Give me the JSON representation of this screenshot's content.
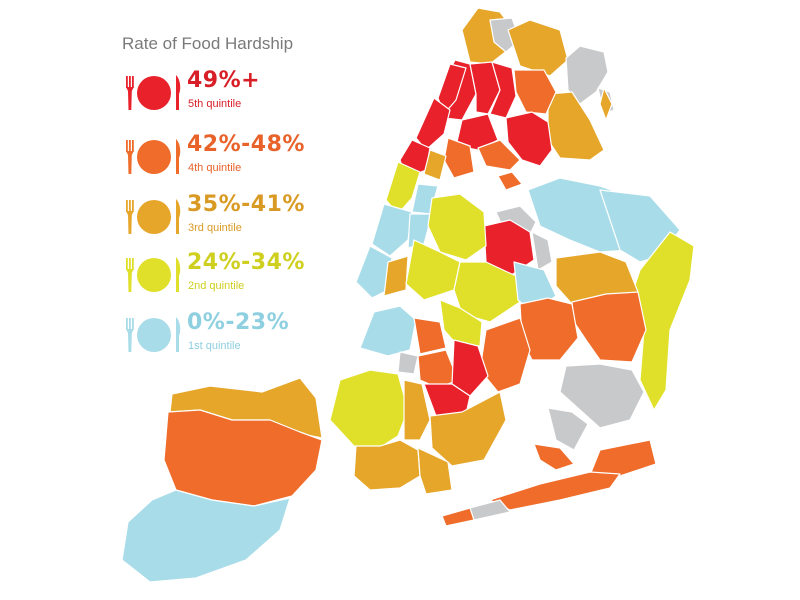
{
  "legend": {
    "title": "Rate of Food Hardship",
    "items": [
      {
        "range": "49%+",
        "quintile": "5th quintile",
        "color": "#e8212b",
        "text_color": "#d81f27"
      },
      {
        "range": "42%-48%",
        "quintile": "4th quintile",
        "color": "#ef6c2a",
        "text_color": "#e8622a"
      },
      {
        "range": "35%-41%",
        "quintile": "3rd quintile",
        "color": "#e6a62a",
        "text_color": "#d99a24"
      },
      {
        "range": "24%-34%",
        "quintile": "2nd quintile",
        "color": "#e0e02a",
        "text_color": "#cfcf1f"
      },
      {
        "range": "0%-23%",
        "quintile": "1st quintile",
        "color": "#a8dce8",
        "text_color": "#8ecfe0"
      }
    ]
  },
  "map": {
    "no_data_color": "#c8c9cb"
  }
}
